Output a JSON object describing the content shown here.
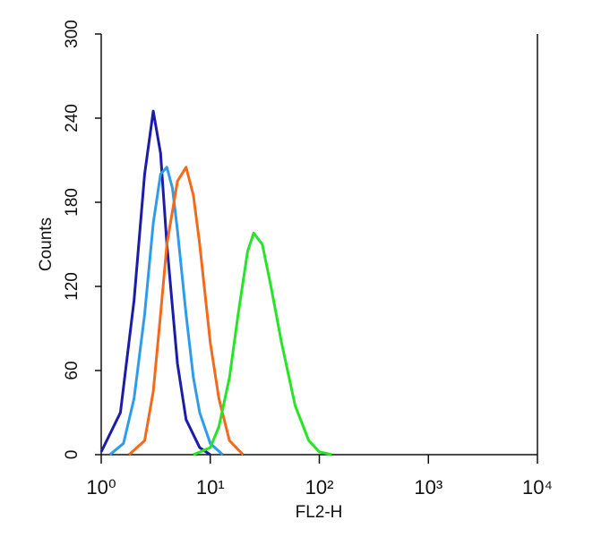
{
  "chart_data": {
    "type": "line",
    "x_label": "FL2-H",
    "y_label": "Counts",
    "xlog": true,
    "xlim": [
      1,
      10000
    ],
    "xticks": [
      {
        "value": 1,
        "label": "10⁰"
      },
      {
        "value": 10,
        "label": "10¹"
      },
      {
        "value": 100,
        "label": "10²"
      },
      {
        "value": 1000,
        "label": "10³"
      },
      {
        "value": 10000,
        "label": "10⁴"
      }
    ],
    "ylim": [
      0,
      300
    ],
    "yticks": [
      0,
      60,
      120,
      180,
      240,
      300
    ],
    "series": [
      {
        "color": "#1c1ca8",
        "x": [
          1,
          1.5,
          2,
          2.5,
          3,
          3.5,
          4,
          5,
          6,
          8,
          10
        ],
        "values": [
          2,
          30,
          110,
          200,
          245,
          215,
          150,
          65,
          25,
          5,
          0
        ]
      },
      {
        "color": "#2e9ceb",
        "x": [
          1.2,
          1.6,
          2,
          2.5,
          3,
          3.5,
          4,
          4.5,
          5,
          6,
          7,
          8,
          10,
          13
        ],
        "values": [
          0,
          8,
          40,
          100,
          165,
          200,
          205,
          190,
          160,
          100,
          55,
          30,
          8,
          0
        ]
      },
      {
        "color": "#f36a1c",
        "x": [
          1.8,
          2.5,
          3,
          3.5,
          4,
          5,
          6,
          7,
          8,
          10,
          12,
          15,
          20
        ],
        "values": [
          0,
          10,
          45,
          100,
          150,
          195,
          205,
          185,
          150,
          80,
          40,
          10,
          0
        ]
      },
      {
        "color": "#27e427",
        "x": [
          7,
          10,
          12,
          15,
          18,
          22,
          25,
          30,
          36,
          45,
          60,
          80,
          100,
          130
        ],
        "values": [
          0,
          5,
          20,
          55,
          100,
          145,
          158,
          150,
          120,
          80,
          35,
          10,
          2,
          0
        ]
      }
    ]
  }
}
